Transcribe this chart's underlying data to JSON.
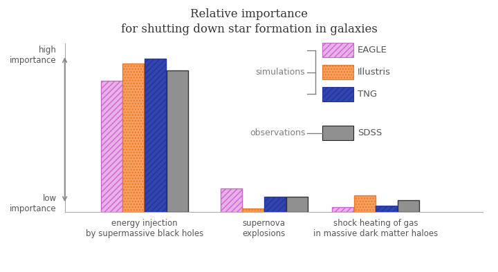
{
  "title_line1": "Relative importance",
  "title_line2": "for shutting down star formation in galaxies",
  "categories": [
    "energy injection\nby supermassive black holes",
    "supernova\nexplosions",
    "shock heating of gas\nin massive dark matter haloes"
  ],
  "series_names": [
    "EAGLE",
    "Illustris",
    "TNG",
    "SDSS"
  ],
  "series": {
    "EAGLE": [
      0.78,
      0.14,
      0.03
    ],
    "Illustris": [
      0.88,
      0.02,
      0.1
    ],
    "TNG": [
      0.91,
      0.09,
      0.04
    ],
    "SDSS": [
      0.84,
      0.09,
      0.07
    ]
  },
  "bar_facecolors": {
    "EAGLE": "#e8b0e8",
    "Illustris": "#f5a060",
    "TNG": "#3344aa",
    "SDSS": "#909090"
  },
  "bar_edgecolors": {
    "EAGLE": "#cc66cc",
    "Illustris": "#ee7722",
    "TNG": "#2233aa",
    "SDSS": "#333333"
  },
  "hatches": {
    "EAGLE": "////",
    "Illustris": "....",
    "TNG": "////",
    "SDSS": ""
  },
  "hatch_colors": {
    "EAGLE": "#cc66cc",
    "Illustris": "#dd5500",
    "TNG": "#ffffff",
    "SDSS": ""
  },
  "group_centers": [
    0.2,
    0.5,
    0.78
  ],
  "bar_width": 0.055,
  "bar_gap": 0.0,
  "xlim": [
    0.0,
    1.05
  ],
  "ylim": [
    0.0,
    1.0
  ],
  "ytick_positions": [
    0.05,
    0.93
  ],
  "ytick_labels": [
    "low\nimportance",
    "high\nimportance"
  ],
  "background_color": "#ffffff",
  "text_color": "#555555",
  "title_color": "#333333",
  "spine_color": "#aaaaaa",
  "arrow_color": "#888888"
}
